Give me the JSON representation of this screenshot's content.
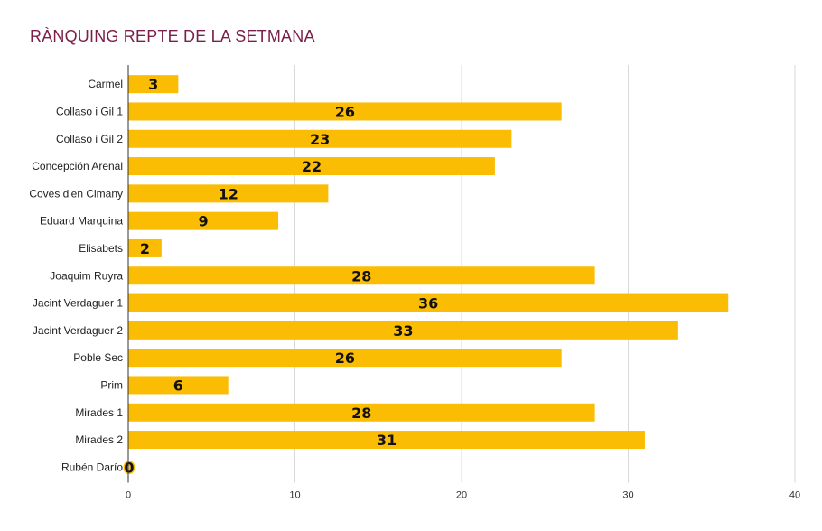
{
  "chart_data": {
    "type": "bar",
    "orientation": "horizontal",
    "title": "RÀNQUING REPTE DE LA SETMANA",
    "categories": [
      "Carmel",
      "Collaso i Gil 1",
      "Collaso i Gil 2",
      "Concepción Arenal",
      "Coves d'en Cimany",
      "Eduard Marquina",
      "Elisabets",
      "Joaquim Ruyra",
      "Jacint Verdaguer 1",
      "Jacint Verdaguer 2",
      "Poble Sec",
      "Prim",
      "Mirades 1",
      "Mirades 2",
      "Rubén Darío"
    ],
    "values": [
      3,
      26,
      23,
      22,
      12,
      9,
      2,
      28,
      36,
      33,
      26,
      6,
      28,
      31,
      0
    ],
    "xlim": [
      0,
      40
    ],
    "xticks": [
      0,
      10,
      20,
      30,
      40
    ],
    "grid": true,
    "data_labels": true,
    "bar_color": "#fbbc04",
    "title_color": "#7b1f4a"
  }
}
